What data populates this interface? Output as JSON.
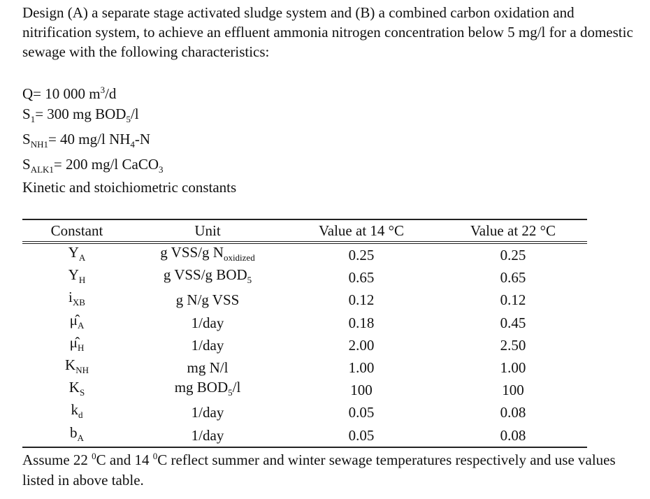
{
  "intro": "Design (A) a separate stage activated sludge system and (B) a combined carbon oxidation and nitrification system, to achieve an effluent ammonia nitrogen concentration below 5 mg/l for a domestic sewage with the following characteristics:",
  "given": [
    [
      "Q= 10 000 m",
      {
        "sup": "3"
      },
      "/d"
    ],
    [
      "S",
      {
        "sub": "1"
      },
      "= 300 mg BOD",
      {
        "sub": "5"
      },
      "/l"
    ],
    [
      "S",
      {
        "sub": "NH1"
      },
      "= 40 mg/l NH",
      {
        "sub": "4"
      },
      "-N"
    ],
    [
      "S",
      {
        "sub": "ALK1"
      },
      "= 200 mg/l CaCO",
      {
        "sub": "3"
      }
    ]
  ],
  "constants_heading": "Kinetic and stoichiometric constants",
  "table": {
    "headers": [
      "Constant",
      "Unit",
      "Value at 14 °C",
      "Value at 22 °C"
    ],
    "rows": [
      [
        [
          "Y",
          {
            "sub": "A"
          }
        ],
        [
          "g VSS/g N",
          {
            "sub": "oxidized"
          }
        ],
        "0.25",
        "0.25"
      ],
      [
        [
          "Y",
          {
            "sub": "H"
          }
        ],
        [
          "g VSS/g BOD",
          {
            "sub": "5"
          }
        ],
        "0.65",
        "0.65"
      ],
      [
        [
          "i",
          {
            "sub": "XB"
          }
        ],
        "g N/g VSS",
        "0.12",
        "0.12"
      ],
      [
        [
          "μ̂",
          {
            "sub": "A"
          }
        ],
        "1/day",
        "0.18",
        "0.45"
      ],
      [
        [
          "μ̂",
          {
            "sub": "H"
          }
        ],
        "1/day",
        "2.00",
        "2.50"
      ],
      [
        [
          "K",
          {
            "sub": "NH"
          }
        ],
        "mg N/l",
        "1.00",
        "1.00"
      ],
      [
        [
          "K",
          {
            "sub": "S"
          }
        ],
        [
          "mg BOD",
          {
            "sub": "5"
          },
          "/l"
        ],
        "100",
        "100"
      ],
      [
        [
          "k",
          {
            "sub": "d"
          }
        ],
        "1/day",
        "0.05",
        "0.08"
      ],
      [
        [
          "b",
          {
            "sub": "A"
          }
        ],
        "1/day",
        "0.05",
        "0.08"
      ]
    ]
  },
  "note": [
    "Assume 22 ",
    {
      "sup": "0"
    },
    "C and 14 ",
    {
      "sup": "0"
    },
    "C reflect summer and winter sewage temperatures respectively and use values listed in above table."
  ]
}
